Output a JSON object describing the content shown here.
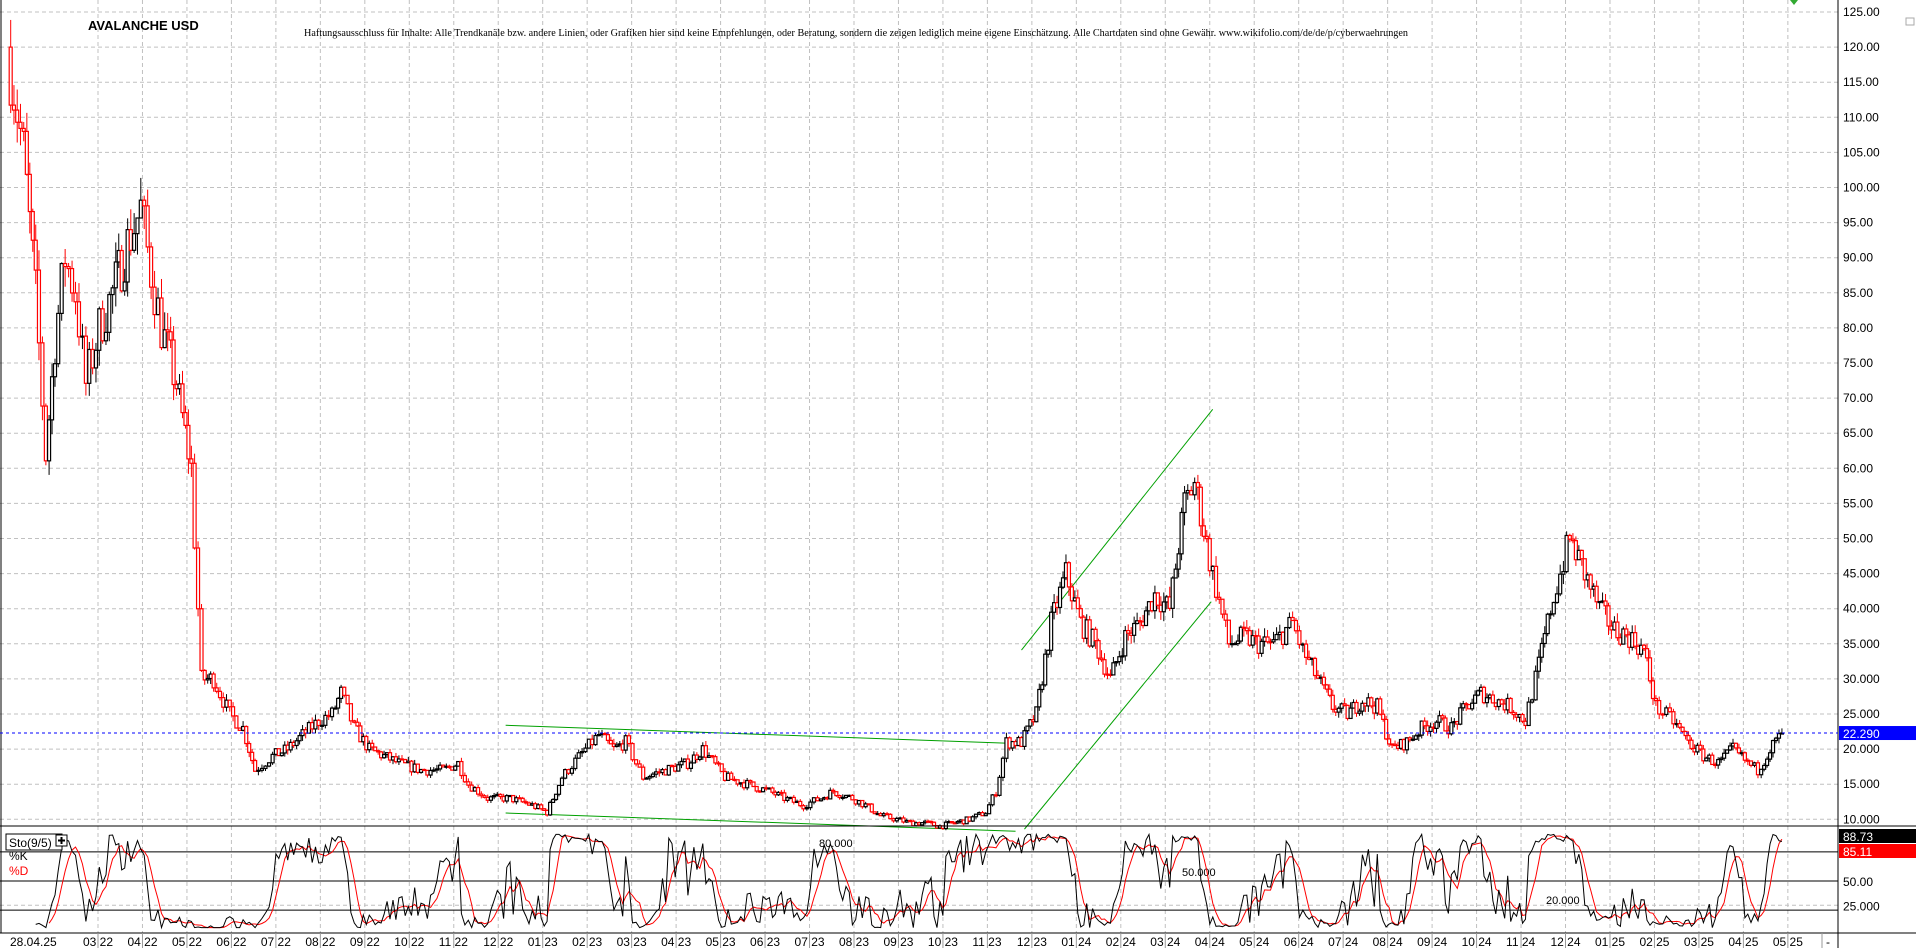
{
  "header": {
    "title": "AVALANCHE USD",
    "disclaimer": "Haftungsausschluss für Inhalte: Alle Trendkanäle bzw. andere Linien, oder Grafiken hier sind keine Empfehlungen, oder Beratung, sondern die zeigen lediglich meine eigene Einschätzung. Alle Chartdaten sind ohne Gewähr. www.wikifolio.com/de/de/p/cyberwaehrungen"
  },
  "colors": {
    "up": "#000000",
    "down": "#ff0000",
    "grid": "#c0c0c0",
    "trendline": "#00a000",
    "last_price": "#0000ff"
  },
  "chart_data": [
    {
      "type": "candlestick",
      "series_name": "AVALANCHE USD",
      "ylim": [
        10,
        125
      ],
      "y_ticks": [
        "125.00",
        "120.00",
        "115.00",
        "110.00",
        "105.00",
        "100.00",
        "95.00",
        "90.00",
        "85.00",
        "80.00",
        "75.00",
        "70.00",
        "65.00",
        "60.00",
        "55.00",
        "50.00",
        "45.000",
        "40.000",
        "35.000",
        "30.000",
        "25.000",
        "20.000",
        "15.000",
        "10.000"
      ],
      "grid": true,
      "last_price": {
        "value": 22.29,
        "label": "22.290"
      },
      "approx_closes": [
        [
          "2022-01-01",
          120
        ],
        [
          "2022-01-12",
          105
        ],
        [
          "2022-01-20",
          85
        ],
        [
          "2022-01-27",
          62
        ],
        [
          "2022-02-03",
          78
        ],
        [
          "2022-02-10",
          90
        ],
        [
          "2022-02-17",
          85
        ],
        [
          "2022-02-24",
          72
        ],
        [
          "2022-03-03",
          80
        ],
        [
          "2022-03-12",
          85
        ],
        [
          "2022-03-22",
          92
        ],
        [
          "2022-03-31",
          97
        ],
        [
          "2022-04-08",
          88
        ],
        [
          "2022-04-15",
          80
        ],
        [
          "2022-04-25",
          72
        ],
        [
          "2022-05-05",
          60
        ],
        [
          "2022-05-12",
          30
        ],
        [
          "2022-05-20",
          30
        ],
        [
          "2022-05-31",
          25
        ],
        [
          "2022-06-10",
          23
        ],
        [
          "2022-06-18",
          17
        ],
        [
          "2022-06-30",
          19
        ],
        [
          "2022-07-10",
          20
        ],
        [
          "2022-07-20",
          22
        ],
        [
          "2022-07-31",
          24
        ],
        [
          "2022-08-10",
          25
        ],
        [
          "2022-08-16",
          28
        ],
        [
          "2022-08-25",
          23
        ],
        [
          "2022-09-05",
          20
        ],
        [
          "2022-09-15",
          19
        ],
        [
          "2022-09-25",
          18
        ],
        [
          "2022-10-10",
          17
        ],
        [
          "2022-10-25",
          17
        ],
        [
          "2022-11-05",
          18
        ],
        [
          "2022-11-12",
          15
        ],
        [
          "2022-11-25",
          13
        ],
        [
          "2022-12-10",
          13
        ],
        [
          "2022-12-25",
          12
        ],
        [
          "2023-01-05",
          11
        ],
        [
          "2023-01-15",
          16
        ],
        [
          "2023-01-31",
          20
        ],
        [
          "2023-02-10",
          22
        ],
        [
          "2023-02-20",
          20
        ],
        [
          "2023-02-28",
          21
        ],
        [
          "2023-03-10",
          16
        ],
        [
          "2023-03-25",
          17
        ],
        [
          "2023-04-10",
          18
        ],
        [
          "2023-04-20",
          20
        ],
        [
          "2023-05-05",
          16
        ],
        [
          "2023-05-20",
          15
        ],
        [
          "2023-06-05",
          14
        ],
        [
          "2023-06-15",
          13
        ],
        [
          "2023-06-28",
          12
        ],
        [
          "2023-07-10",
          13
        ],
        [
          "2023-07-18",
          14
        ],
        [
          "2023-07-31",
          13
        ],
        [
          "2023-08-10",
          12
        ],
        [
          "2023-08-20",
          10.5
        ],
        [
          "2023-08-31",
          10
        ],
        [
          "2023-09-10",
          9.5
        ],
        [
          "2023-09-20",
          9.5
        ],
        [
          "2023-09-30",
          9
        ],
        [
          "2023-10-10",
          9.5
        ],
        [
          "2023-10-20",
          10
        ],
        [
          "2023-10-31",
          11
        ],
        [
          "2023-11-08",
          14
        ],
        [
          "2023-11-15",
          21
        ],
        [
          "2023-11-25",
          21
        ],
        [
          "2023-12-05",
          25
        ],
        [
          "2023-12-15",
          38
        ],
        [
          "2023-12-25",
          45
        ],
        [
          "2024-01-05",
          38
        ],
        [
          "2024-01-15",
          35
        ],
        [
          "2024-01-25",
          30
        ],
        [
          "2024-02-05",
          36
        ],
        [
          "2024-02-15",
          38
        ],
        [
          "2024-02-25",
          42
        ],
        [
          "2024-03-05",
          40
        ],
        [
          "2024-03-15",
          55
        ],
        [
          "2024-03-22",
          58
        ],
        [
          "2024-04-02",
          47
        ],
        [
          "2024-04-15",
          35
        ],
        [
          "2024-04-25",
          36
        ],
        [
          "2024-05-05",
          35
        ],
        [
          "2024-05-15",
          35
        ],
        [
          "2024-05-28",
          38
        ],
        [
          "2024-06-05",
          34
        ],
        [
          "2024-06-15",
          30
        ],
        [
          "2024-06-25",
          26
        ],
        [
          "2024-07-05",
          25
        ],
        [
          "2024-07-15",
          27
        ],
        [
          "2024-07-25",
          26
        ],
        [
          "2024-08-05",
          20
        ],
        [
          "2024-08-15",
          21
        ],
        [
          "2024-08-25",
          23
        ],
        [
          "2024-09-05",
          24
        ],
        [
          "2024-09-15",
          23
        ],
        [
          "2024-09-25",
          26
        ],
        [
          "2024-10-05",
          28
        ],
        [
          "2024-10-15",
          27
        ],
        [
          "2024-10-25",
          26
        ],
        [
          "2024-11-05",
          24
        ],
        [
          "2024-11-12",
          30
        ],
        [
          "2024-11-22",
          40
        ],
        [
          "2024-12-05",
          50
        ],
        [
          "2024-12-15",
          45
        ],
        [
          "2024-12-25",
          40
        ],
        [
          "2025-01-05",
          37
        ],
        [
          "2025-01-15",
          36
        ],
        [
          "2025-01-25",
          34
        ],
        [
          "2025-02-03",
          26
        ],
        [
          "2025-02-15",
          24
        ],
        [
          "2025-02-25",
          21
        ],
        [
          "2025-03-05",
          19
        ],
        [
          "2025-03-15",
          18
        ],
        [
          "2025-03-25",
          20
        ],
        [
          "2025-04-05",
          18
        ],
        [
          "2025-04-12",
          17
        ],
        [
          "2025-04-20",
          20
        ],
        [
          "2025-04-28",
          22.29
        ]
      ],
      "trendlines": [
        {
          "from": [
            "2022-12-06",
            23.4
          ],
          "to": [
            "2023-11-20",
            20.8
          ]
        },
        {
          "from": [
            "2022-12-06",
            10.9
          ],
          "to": [
            "2023-11-20",
            8.3
          ]
        },
        {
          "from": [
            "2023-11-24",
            34.1
          ],
          "to": [
            "2024-04-03",
            68.4
          ]
        },
        {
          "from": [
            "2023-11-26",
            8.6
          ],
          "to": [
            "2024-04-02",
            41
          ]
        }
      ]
    },
    {
      "type": "line",
      "indicator": "Sto(9/5)",
      "series": [
        {
          "name": "%K",
          "last": "88.73"
        },
        {
          "name": "%D",
          "last": "85.11"
        }
      ],
      "ylim": [
        0,
        100
      ],
      "levels": [
        {
          "value": 80,
          "label": "80.000"
        },
        {
          "value": 50,
          "label": "50.000"
        },
        {
          "value": 20,
          "label": "20.000"
        }
      ],
      "y_ticks": [
        "50.00",
        "25.000"
      ]
    }
  ],
  "x_axis": {
    "first_label": "28.04.25",
    "months": [
      "03 22",
      "04 22",
      "05 22",
      "06 22",
      "07 22",
      "08 22",
      "09 22",
      "10 22",
      "11 22",
      "12 22",
      "01 23",
      "02 23",
      "03 23",
      "04 23",
      "05 23",
      "06 23",
      "07 23",
      "08 23",
      "09 23",
      "10 23",
      "11 23",
      "12 23",
      "01 24",
      "02 24",
      "03 24",
      "04 24",
      "05 24",
      "06 24",
      "07 24",
      "08 24",
      "09 24",
      "10 24",
      "11 24",
      "12 24",
      "01 25",
      "02 25",
      "03 25",
      "04 25",
      "05 25"
    ],
    "end_label": "-"
  }
}
